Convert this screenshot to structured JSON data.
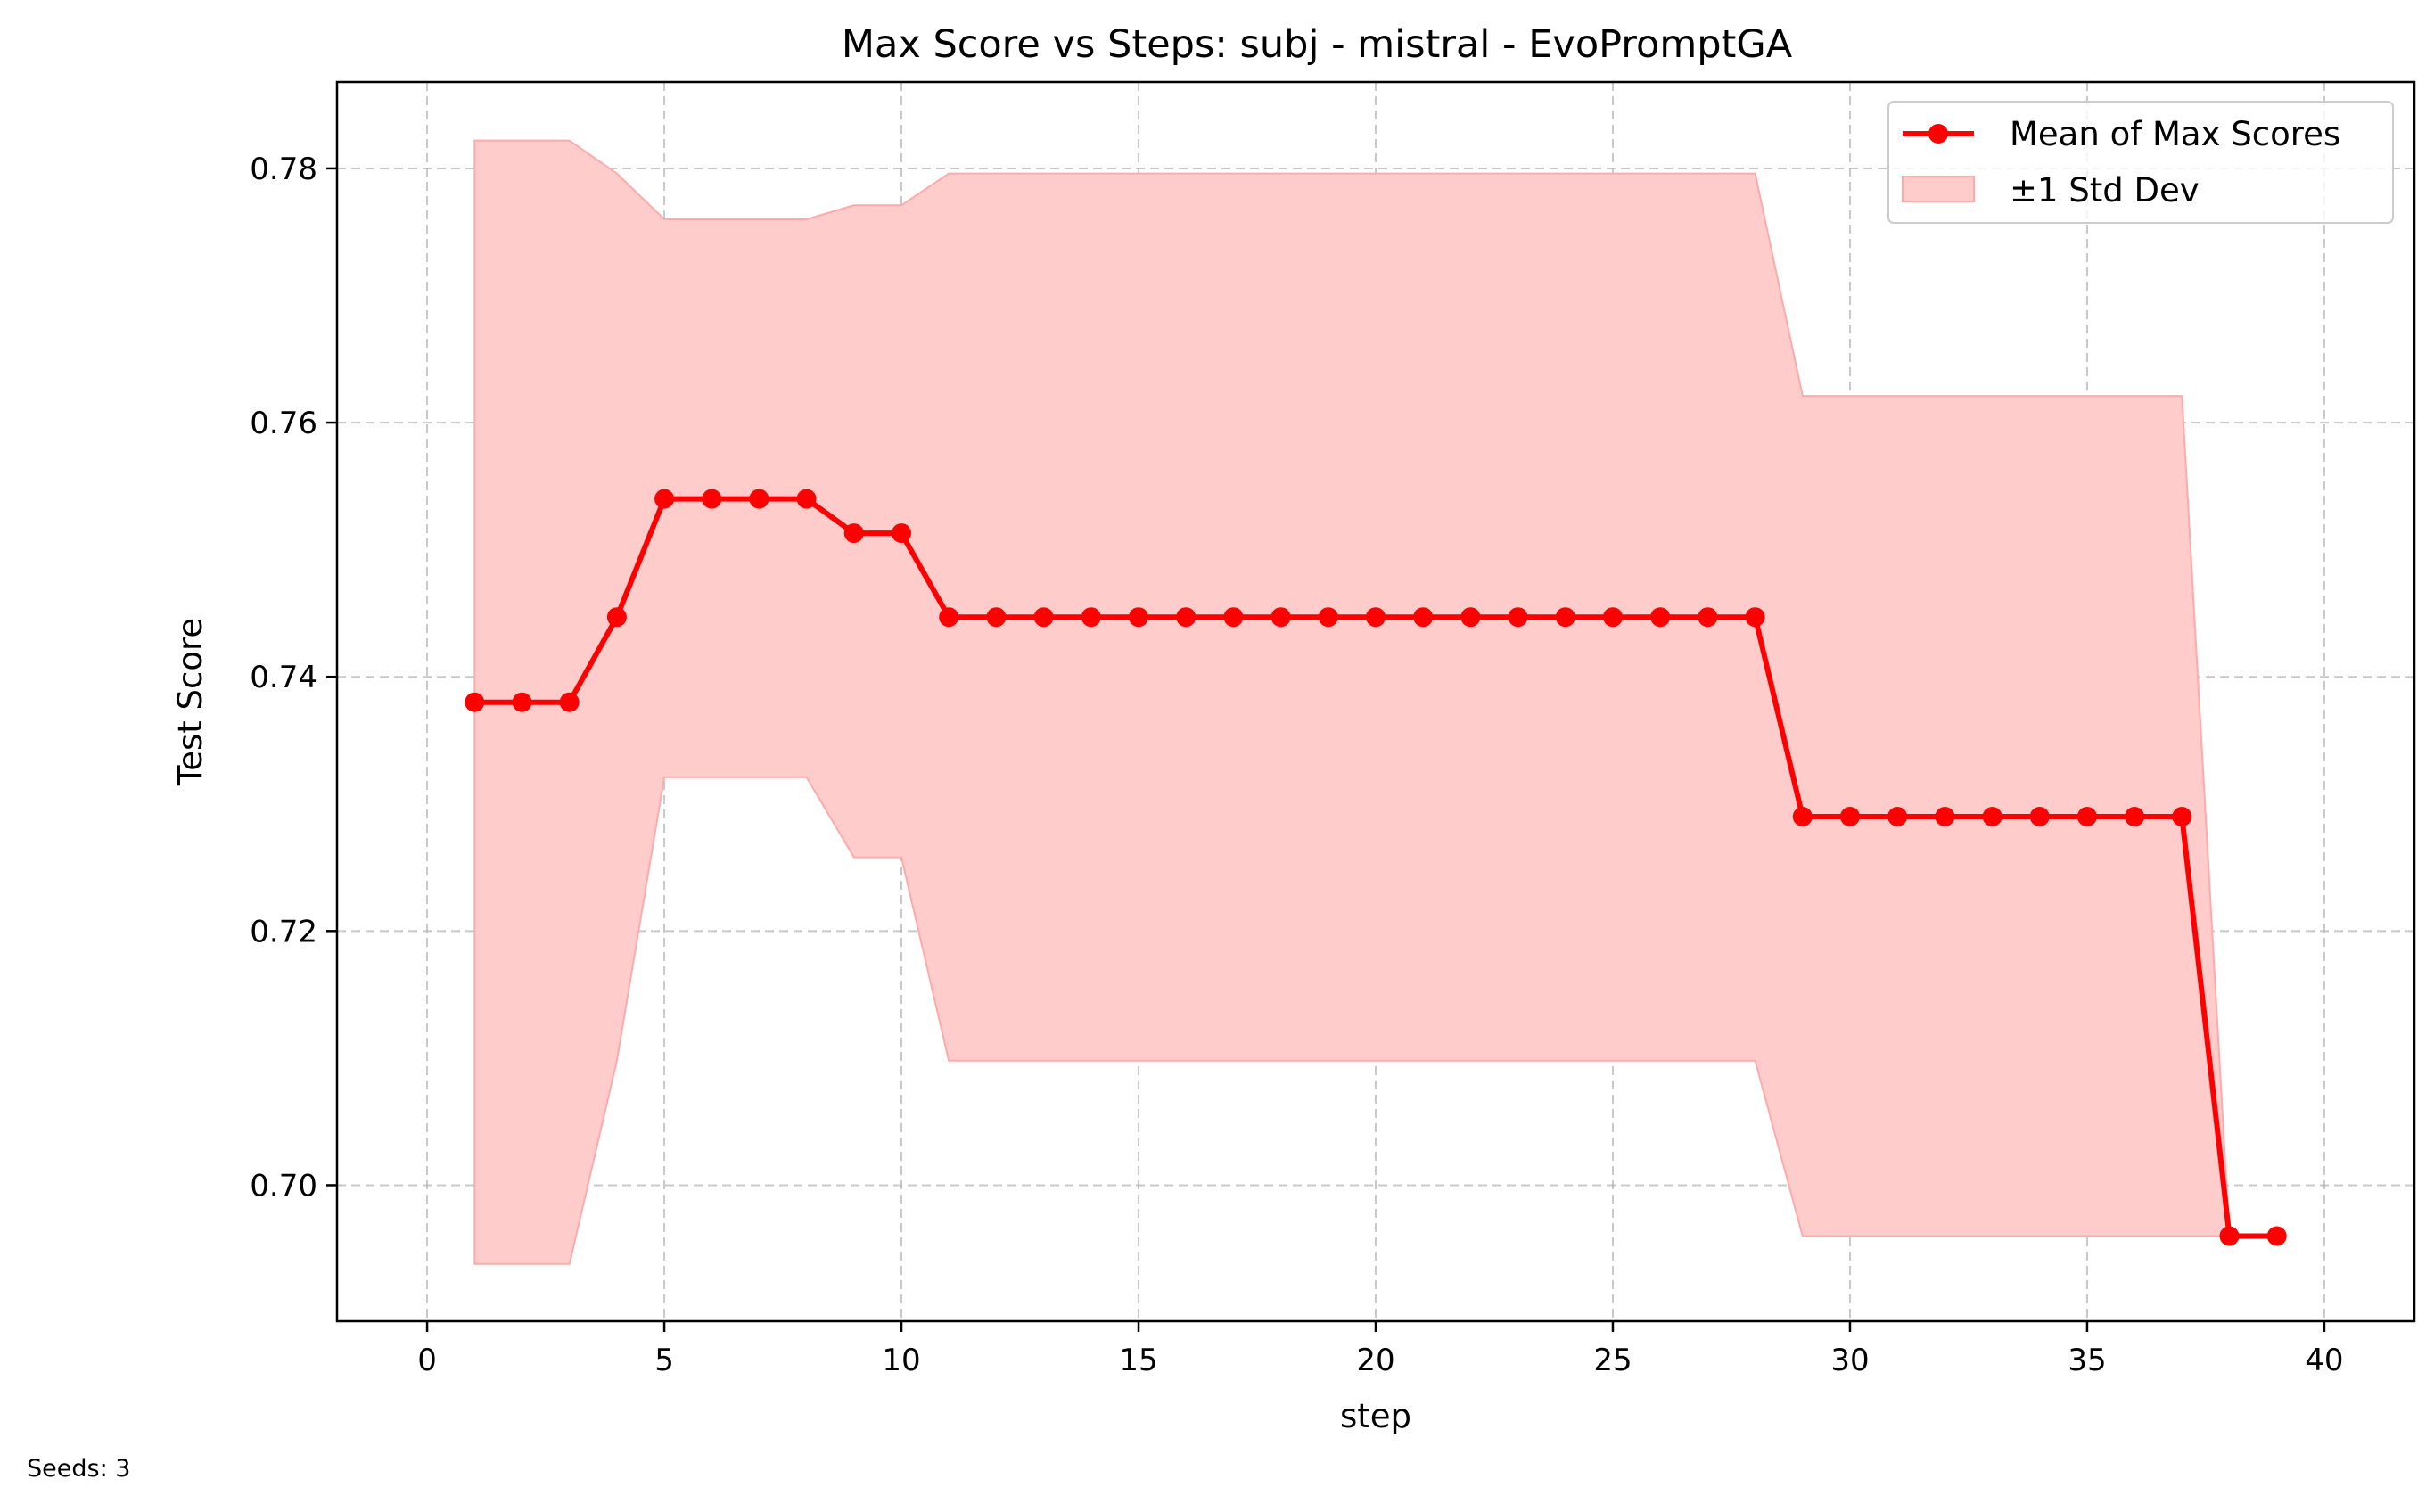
{
  "chart_data": {
    "type": "line",
    "title": "Max Score vs Steps: subj - mistral - EvoPromptGA",
    "xlabel": "step",
    "ylabel": "Test Score",
    "xlim": [
      -1.9,
      41.9
    ],
    "ylim": [
      0.6893,
      0.7868
    ],
    "xticks": [
      0,
      5,
      10,
      15,
      20,
      25,
      30,
      35,
      40
    ],
    "yticks": [
      0.7,
      0.72,
      0.74,
      0.76,
      0.78
    ],
    "ytick_labels": [
      "0.70",
      "0.72",
      "0.74",
      "0.76",
      "0.78"
    ],
    "grid": true,
    "legend_position": "top-right",
    "series": [
      {
        "name": "Mean of Max Scores",
        "color": "#ff0000",
        "x": [
          1,
          2,
          3,
          4,
          5,
          6,
          7,
          8,
          9,
          10,
          11,
          12,
          13,
          14,
          15,
          16,
          17,
          18,
          19,
          20,
          21,
          22,
          23,
          24,
          25,
          26,
          27,
          28,
          29,
          30,
          31,
          32,
          33,
          34,
          35,
          36,
          37,
          38,
          39
        ],
        "y": [
          0.738,
          0.738,
          0.738,
          0.7447,
          0.754,
          0.754,
          0.754,
          0.754,
          0.7513,
          0.7513,
          0.7447,
          0.7447,
          0.7447,
          0.7447,
          0.7447,
          0.7447,
          0.7447,
          0.7447,
          0.7447,
          0.7447,
          0.7447,
          0.7447,
          0.7447,
          0.7447,
          0.7447,
          0.7447,
          0.7447,
          0.7447,
          0.729,
          0.729,
          0.729,
          0.729,
          0.729,
          0.729,
          0.729,
          0.729,
          0.729,
          0.696,
          0.696
        ]
      }
    ],
    "band": {
      "name": "±1 Std Dev",
      "color": "#ffcccc",
      "edge_color": "#ffaaaa",
      "x": [
        1,
        2,
        3,
        4,
        5,
        6,
        7,
        8,
        9,
        10,
        11,
        12,
        13,
        14,
        15,
        16,
        17,
        18,
        19,
        20,
        21,
        22,
        23,
        24,
        25,
        26,
        27,
        28,
        29,
        30,
        31,
        32,
        33,
        34,
        35,
        36,
        37,
        38,
        39
      ],
      "lower": [
        0.6938,
        0.6938,
        0.6938,
        0.7098,
        0.7321,
        0.7321,
        0.7321,
        0.7321,
        0.7258,
        0.7258,
        0.7098,
        0.7098,
        0.7098,
        0.7098,
        0.7098,
        0.7098,
        0.7098,
        0.7098,
        0.7098,
        0.7098,
        0.7098,
        0.7098,
        0.7098,
        0.7098,
        0.7098,
        0.7098,
        0.7098,
        0.7098,
        0.696,
        0.696,
        0.696,
        0.696,
        0.696,
        0.696,
        0.696,
        0.696,
        0.696,
        0.696,
        0.696
      ],
      "upper": [
        0.7822,
        0.7822,
        0.7822,
        0.7796,
        0.776,
        0.776,
        0.776,
        0.776,
        0.7771,
        0.7771,
        0.7796,
        0.7796,
        0.7796,
        0.7796,
        0.7796,
        0.7796,
        0.7796,
        0.7796,
        0.7796,
        0.7796,
        0.7796,
        0.7796,
        0.7796,
        0.7796,
        0.7796,
        0.7796,
        0.7796,
        0.7796,
        0.7621,
        0.7621,
        0.7621,
        0.7621,
        0.7621,
        0.7621,
        0.7621,
        0.7621,
        0.7621,
        0.696,
        0.696
      ]
    }
  },
  "footnote": "Seeds: 3"
}
